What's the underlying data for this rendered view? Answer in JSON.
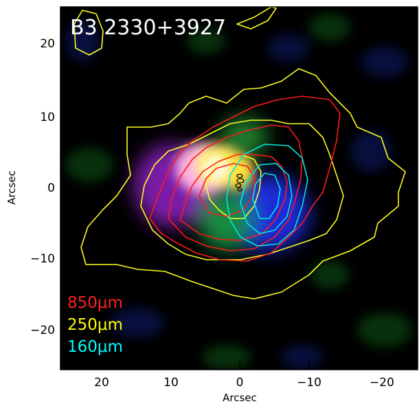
{
  "figure": {
    "title": "B3 2330+3927",
    "xlabel": "Arcsec",
    "ylabel": "Arcsec",
    "x_ticks": [
      "20",
      "10",
      "0",
      "−10",
      "−20"
    ],
    "y_ticks": [
      "20",
      "10",
      "0",
      "−10",
      "−20"
    ],
    "legend": [
      {
        "label": "850μm",
        "color": "#ff2020"
      },
      {
        "label": "250μm",
        "color": "#ffff00"
      },
      {
        "label": "160μm",
        "color": "#00ffff"
      }
    ],
    "colors": {
      "background": "#000000",
      "contour_850": "#ff1a1a",
      "contour_250": "#ffff20",
      "contour_160": "#00e6e6",
      "contour_radio": "#000000"
    }
  }
}
